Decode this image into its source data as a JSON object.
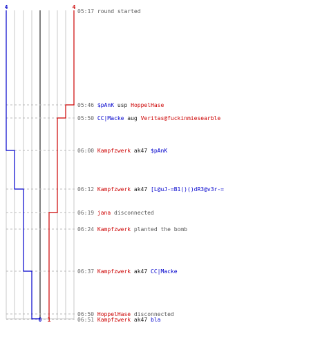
{
  "colors": {
    "blue": "#0000cc",
    "red": "#cc0000",
    "grid": "#c8c8c8",
    "center": "#555555",
    "guide": "#bbbbbb",
    "text": "#333333"
  },
  "graph": {
    "blue_team": {
      "start_count": "4",
      "end_count": "0"
    },
    "red_team": {
      "start_count": "4",
      "end_count": "1"
    }
  },
  "events": [
    {
      "time": "05:17",
      "text": "round started",
      "type": "msg"
    },
    {
      "time": "05:46",
      "actor": "$pAnK",
      "actor_team": "blue",
      "action": "usp",
      "target": "HoppelHase",
      "target_team": "red",
      "type": "kill"
    },
    {
      "time": "05:50",
      "actor": "CC|Macke",
      "actor_team": "blue",
      "action": "aug",
      "target": "Veritas@fuckinmiesearble",
      "target_team": "red",
      "type": "kill"
    },
    {
      "time": "06:00",
      "actor": "Kampfzwerk",
      "actor_team": "red",
      "action": "ak47",
      "target": "$pAnK",
      "target_team": "blue",
      "type": "kill"
    },
    {
      "time": "06:12",
      "actor": "Kampfzwerk",
      "actor_team": "red",
      "action": "ak47",
      "target": "[L@uJ-=B1()()dR3@v3r-=",
      "target_team": "blue",
      "type": "kill"
    },
    {
      "time": "06:19",
      "actor": "jana",
      "actor_team": "red",
      "action": "disconnected",
      "type": "disconnect"
    },
    {
      "time": "06:24",
      "actor": "Kampfzwerk",
      "actor_team": "red",
      "action": "planted the bomb",
      "type": "disconnect"
    },
    {
      "time": "06:37",
      "actor": "Kampfzwerk",
      "actor_team": "red",
      "action": "ak47",
      "target": "CC|Macke",
      "target_team": "blue",
      "type": "kill"
    },
    {
      "time": "06:50",
      "actor": "HoppelHase",
      "actor_team": "red",
      "action": "disconnected",
      "type": "disconnect"
    },
    {
      "time": "06:51",
      "actor": "Kampfzwerk",
      "actor_team": "red",
      "action": "ak47",
      "target": "bla",
      "target_team": "blue",
      "type": "kill"
    }
  ]
}
